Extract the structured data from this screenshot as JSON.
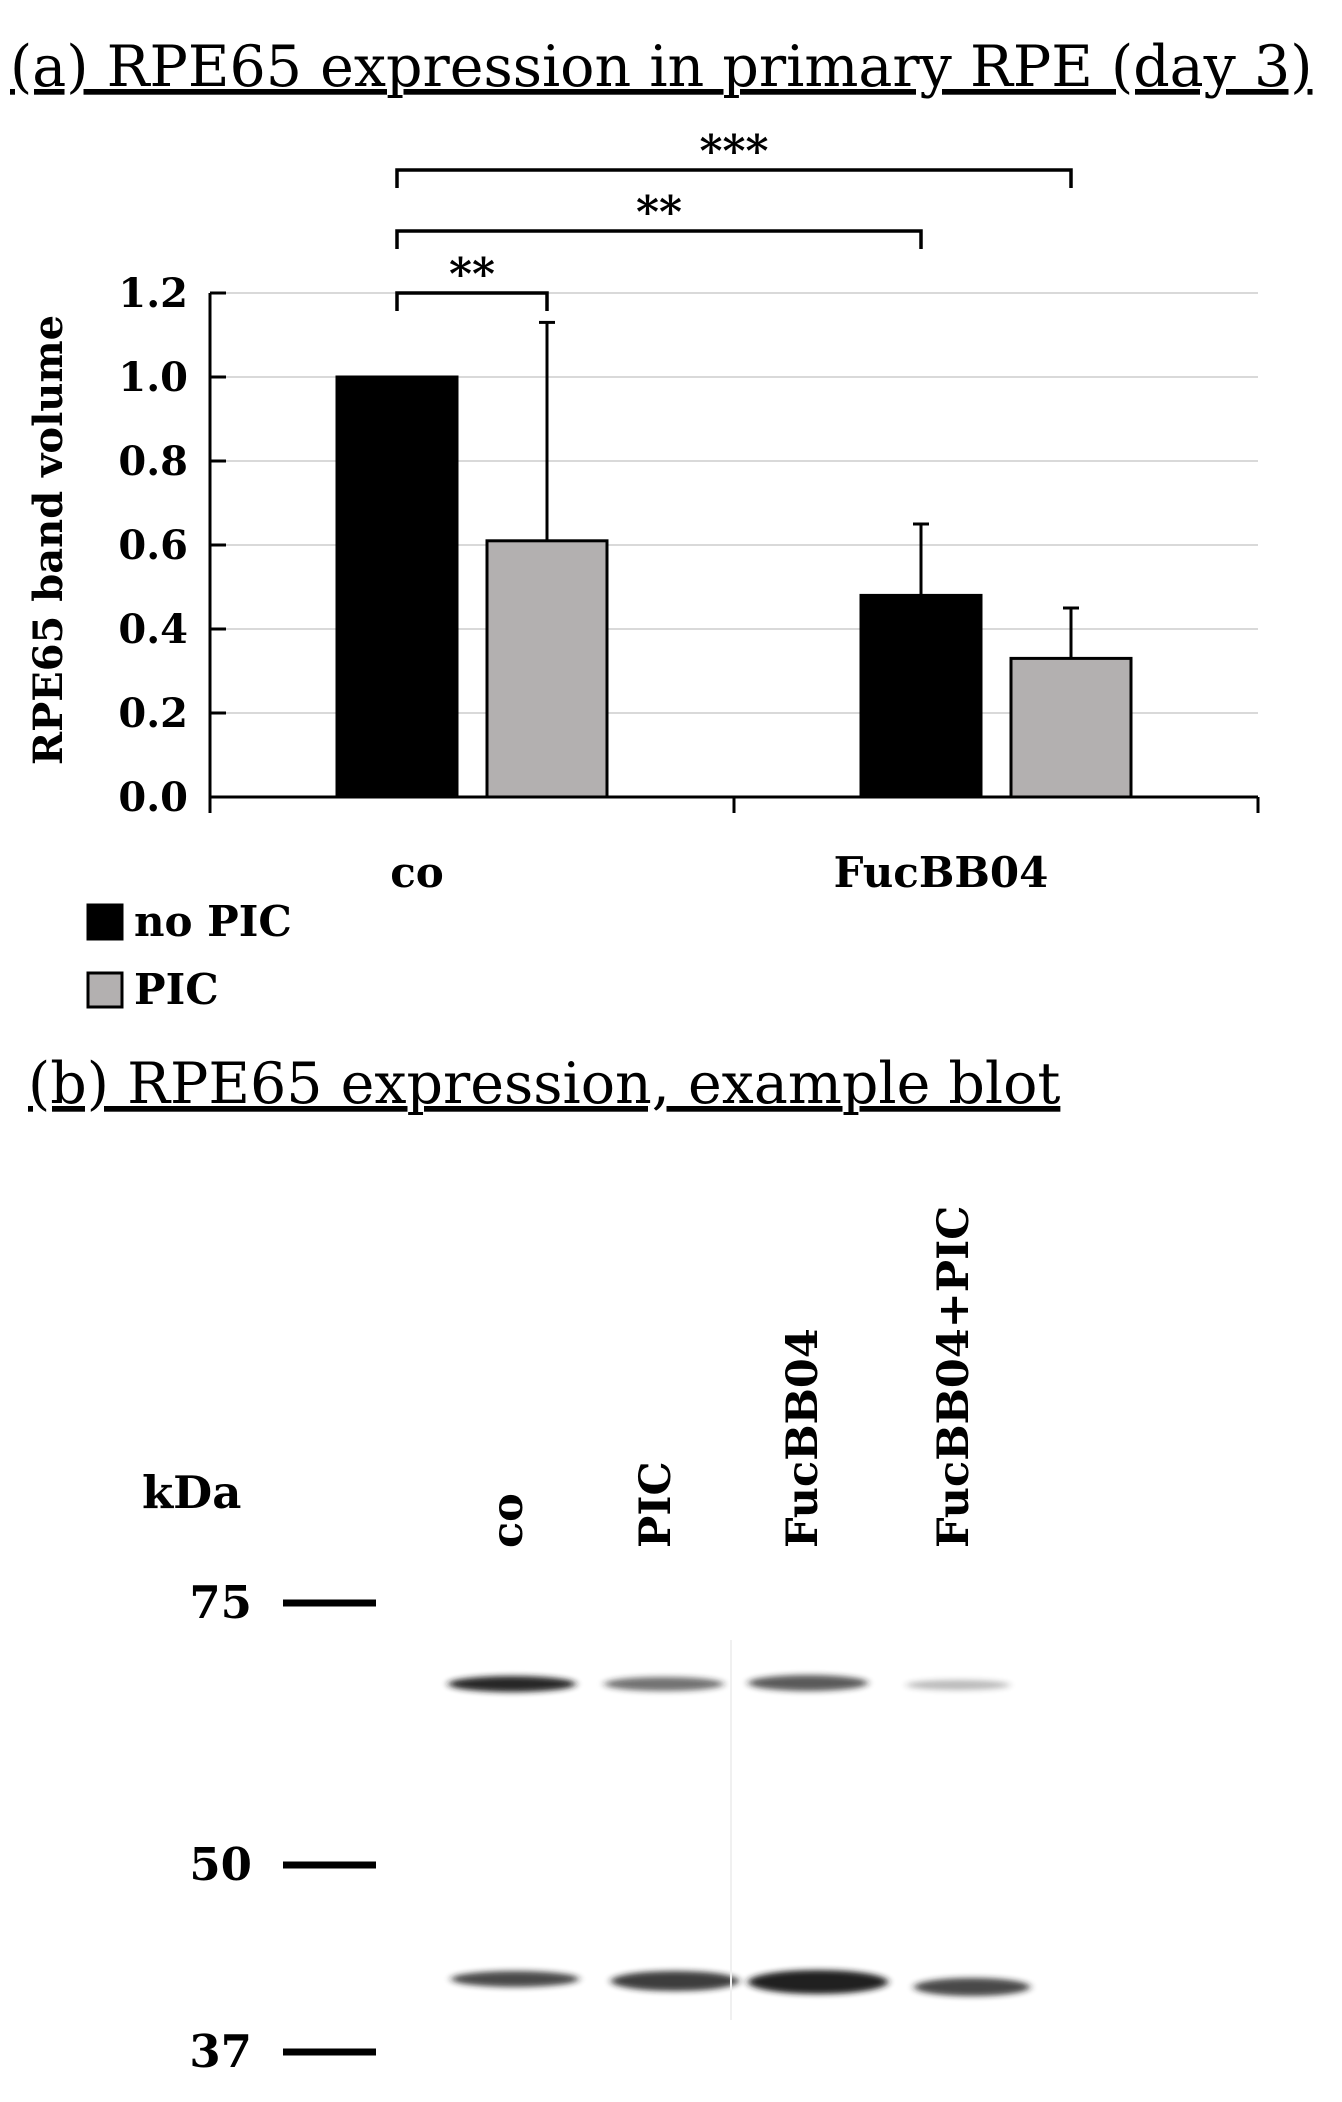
{
  "panel_a": {
    "title": "(a) RPE65 expression in primary RPE (day 3)"
  },
  "panel_b": {
    "title": "(b) RPE65 expression, example blot",
    "kda_label": "kDa",
    "lanes": [
      "co",
      "PIC",
      "FucBB04",
      "FucBB04+PIC"
    ],
    "markers": [
      {
        "label": "75",
        "kda": 75
      },
      {
        "label": "50",
        "kda": 50
      },
      {
        "label": "37",
        "kda": 37
      }
    ],
    "band_color": "#1a1a1a"
  },
  "chart_data": {
    "type": "bar",
    "title": "(a) RPE65 expression in primary RPE (day 3)",
    "xlabel": "",
    "ylabel": "RPE65 band volume",
    "ylim": [
      0,
      1.2
    ],
    "yticks": [
      "0.0",
      "0.2",
      "0.4",
      "0.6",
      "0.8",
      "1.0",
      "1.2"
    ],
    "grid": true,
    "legend_position": "bottom-left",
    "categories": [
      "co",
      "FucBB04"
    ],
    "series": [
      {
        "name": "no PIC",
        "color": "#000000",
        "values": [
          1.0,
          0.48
        ],
        "error": [
          0.0,
          0.17
        ]
      },
      {
        "name": "PIC",
        "color": "#b3b0b0",
        "values": [
          0.61,
          0.33
        ],
        "error": [
          0.52,
          0.12
        ]
      }
    ],
    "significance": [
      {
        "label": "**",
        "from": {
          "category": 0,
          "series": 0
        },
        "to": {
          "category": 0,
          "series": 1
        }
      },
      {
        "label": "**",
        "from": {
          "category": 0,
          "series": 0
        },
        "to": {
          "category": 1,
          "series": 0
        }
      },
      {
        "label": "***",
        "from": {
          "category": 0,
          "series": 0
        },
        "to": {
          "category": 1,
          "series": 1
        }
      }
    ]
  }
}
